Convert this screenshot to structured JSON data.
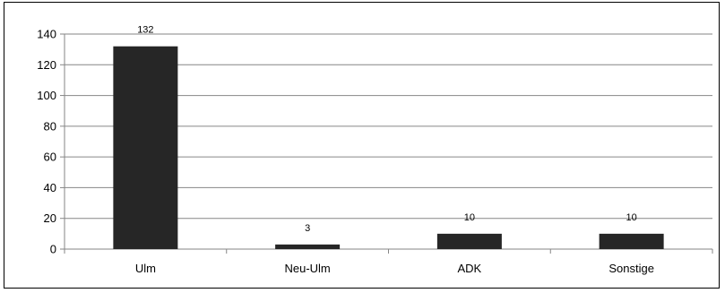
{
  "chart_data": {
    "type": "bar",
    "categories": [
      "Ulm",
      "Neu-Ulm",
      "ADK",
      "Sonstige"
    ],
    "values": [
      132,
      3,
      10,
      10
    ],
    "data_labels": [
      "132",
      "3",
      "10",
      "10"
    ],
    "title": "",
    "xlabel": "",
    "ylabel": "",
    "ylim": [
      0,
      140
    ],
    "yticks": [
      0,
      20,
      40,
      60,
      80,
      100,
      120,
      140
    ],
    "grid": true,
    "legend": "none",
    "bar_color": "#262626",
    "grid_color": "#868686"
  }
}
